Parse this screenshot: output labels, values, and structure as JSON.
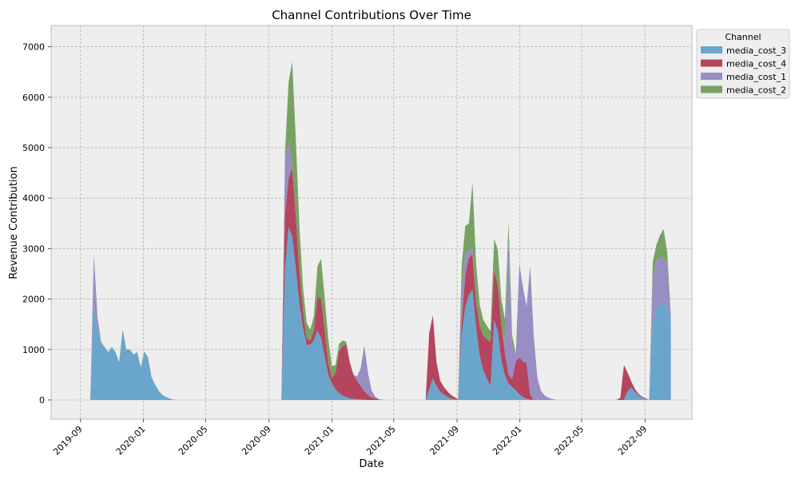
{
  "chart_data": {
    "type": "area",
    "stacked": true,
    "title": "Channel Contributions Over Time",
    "xlabel": "Date",
    "ylabel": "Revenue Contribution",
    "x_range": [
      "2019-07-06",
      "2022-12-01"
    ],
    "ylim": [
      -380,
      7420
    ],
    "y_ticks": [
      0,
      1000,
      2000,
      3000,
      4000,
      5000,
      6000,
      7000
    ],
    "x_ticks": [
      {
        "date": "2019-09-01",
        "label": "2019-09"
      },
      {
        "date": "2020-01-01",
        "label": "2020-01"
      },
      {
        "date": "2020-05-01",
        "label": "2020-05"
      },
      {
        "date": "2020-09-01",
        "label": "2020-09"
      },
      {
        "date": "2021-01-01",
        "label": "2021-01"
      },
      {
        "date": "2021-05-01",
        "label": "2021-05"
      },
      {
        "date": "2021-09-01",
        "label": "2021-09"
      },
      {
        "date": "2022-01-01",
        "label": "2022-01"
      },
      {
        "date": "2022-05-01",
        "label": "2022-05"
      },
      {
        "date": "2022-09-01",
        "label": "2022-09"
      }
    ],
    "grid": true,
    "legend": {
      "title": "Channel",
      "position": "outside-top-right"
    },
    "series": [
      {
        "name": "media_cost_3",
        "color": "#6aa6cc",
        "points": [
          [
            "2019-09-20",
            0
          ],
          [
            "2019-09-27",
            1900
          ],
          [
            "2019-10-04",
            1400
          ],
          [
            "2019-10-11",
            1100
          ],
          [
            "2019-10-18",
            1050
          ],
          [
            "2019-10-25",
            950
          ],
          [
            "2019-11-01",
            1050
          ],
          [
            "2019-11-08",
            950
          ],
          [
            "2019-11-15",
            750
          ],
          [
            "2019-11-22",
            1400
          ],
          [
            "2019-11-29",
            1000
          ],
          [
            "2019-12-06",
            1000
          ],
          [
            "2019-12-13",
            900
          ],
          [
            "2019-12-20",
            950
          ],
          [
            "2019-12-27",
            650
          ],
          [
            "2020-01-03",
            960
          ],
          [
            "2020-01-10",
            850
          ],
          [
            "2020-01-17",
            450
          ],
          [
            "2020-01-24",
            300
          ],
          [
            "2020-01-31",
            180
          ],
          [
            "2020-02-07",
            100
          ],
          [
            "2020-02-14",
            60
          ],
          [
            "2020-02-21",
            30
          ],
          [
            "2020-02-28",
            10
          ],
          [
            "2020-03-06",
            0
          ],
          [
            "2020-09-26",
            0
          ],
          [
            "2020-10-03",
            3000
          ],
          [
            "2020-10-10",
            3500
          ],
          [
            "2020-10-17",
            3200
          ],
          [
            "2020-10-24",
            2500
          ],
          [
            "2020-10-31",
            1800
          ],
          [
            "2020-11-07",
            1350
          ],
          [
            "2020-11-14",
            1050
          ],
          [
            "2020-11-21",
            1100
          ],
          [
            "2020-11-28",
            1200
          ],
          [
            "2020-12-05",
            1400
          ],
          [
            "2020-12-12",
            1200
          ],
          [
            "2020-12-19",
            800
          ],
          [
            "2020-12-26",
            450
          ],
          [
            "2021-01-02",
            300
          ],
          [
            "2021-01-09",
            200
          ],
          [
            "2021-01-16",
            130
          ],
          [
            "2021-01-23",
            80
          ],
          [
            "2021-01-30",
            50
          ],
          [
            "2021-02-06",
            30
          ],
          [
            "2021-02-13",
            20
          ],
          [
            "2021-02-20",
            15
          ],
          [
            "2021-02-27",
            10
          ],
          [
            "2021-03-06",
            5
          ],
          [
            "2021-03-13",
            0
          ],
          [
            "2021-07-03",
            0
          ],
          [
            "2021-07-10",
            250
          ],
          [
            "2021-07-17",
            450
          ],
          [
            "2021-07-24",
            250
          ],
          [
            "2021-07-31",
            150
          ],
          [
            "2021-08-07",
            100
          ],
          [
            "2021-08-14",
            60
          ],
          [
            "2021-08-21",
            30
          ],
          [
            "2021-08-28",
            10
          ],
          [
            "2021-09-04",
            0
          ],
          [
            "2021-09-11",
            1500
          ],
          [
            "2021-09-18",
            1900
          ],
          [
            "2021-09-25",
            2100
          ],
          [
            "2021-10-02",
            2200
          ],
          [
            "2021-10-09",
            1300
          ],
          [
            "2021-10-16",
            800
          ],
          [
            "2021-10-23",
            550
          ],
          [
            "2021-10-30",
            400
          ],
          [
            "2021-11-06",
            250
          ],
          [
            "2021-11-13",
            1800
          ],
          [
            "2021-11-20",
            1300
          ],
          [
            "2021-11-27",
            700
          ],
          [
            "2021-12-04",
            450
          ],
          [
            "2021-12-11",
            300
          ],
          [
            "2021-12-18",
            250
          ],
          [
            "2021-12-25",
            180
          ],
          [
            "2022-01-01",
            100
          ],
          [
            "2022-01-08",
            50
          ],
          [
            "2022-01-15",
            20
          ],
          [
            "2022-01-22",
            0
          ],
          [
            "2022-07-23",
            0
          ],
          [
            "2022-07-30",
            200
          ],
          [
            "2022-08-06",
            250
          ],
          [
            "2022-08-13",
            150
          ],
          [
            "2022-08-20",
            80
          ],
          [
            "2022-08-27",
            40
          ],
          [
            "2022-09-03",
            20
          ],
          [
            "2022-09-10",
            0
          ],
          [
            "2022-09-17",
            1800
          ],
          [
            "2022-09-24",
            1800
          ],
          [
            "2022-10-01",
            1900
          ],
          [
            "2022-10-08",
            1900
          ],
          [
            "2022-10-15",
            1850
          ],
          [
            "2022-10-22",
            1500
          ]
        ]
      },
      {
        "name": "media_cost_4",
        "color": "#b5455e",
        "points": [
          [
            "2020-09-26",
            0
          ],
          [
            "2020-10-03",
            1300
          ],
          [
            "2020-10-10",
            900
          ],
          [
            "2020-10-17",
            1450
          ],
          [
            "2020-10-24",
            1000
          ],
          [
            "2020-10-31",
            600
          ],
          [
            "2020-11-07",
            300
          ],
          [
            "2020-11-14",
            100
          ],
          [
            "2020-11-21",
            80
          ],
          [
            "2020-11-28",
            200
          ],
          [
            "2020-12-05",
            750
          ],
          [
            "2020-12-12",
            800
          ],
          [
            "2020-12-19",
            500
          ],
          [
            "2020-12-26",
            200
          ],
          [
            "2021-01-02",
            100
          ],
          [
            "2021-01-09",
            350
          ],
          [
            "2021-01-16",
            900
          ],
          [
            "2021-01-23",
            1000
          ],
          [
            "2021-01-30",
            1050
          ],
          [
            "2021-02-06",
            650
          ],
          [
            "2021-02-13",
            450
          ],
          [
            "2021-02-20",
            350
          ],
          [
            "2021-02-27",
            250
          ],
          [
            "2021-03-06",
            150
          ],
          [
            "2021-03-13",
            90
          ],
          [
            "2021-03-20",
            50
          ],
          [
            "2021-03-27",
            25
          ],
          [
            "2021-04-03",
            10
          ],
          [
            "2021-04-10",
            0
          ],
          [
            "2021-06-26",
            0
          ],
          [
            "2021-07-03",
            0
          ],
          [
            "2021-07-10",
            1300
          ],
          [
            "2021-07-17",
            1250
          ],
          [
            "2021-07-24",
            350
          ],
          [
            "2021-07-31",
            200
          ],
          [
            "2021-08-07",
            150
          ],
          [
            "2021-08-14",
            100
          ],
          [
            "2021-08-21",
            60
          ],
          [
            "2021-08-28",
            40
          ],
          [
            "2021-09-04",
            0
          ],
          [
            "2021-09-11",
            300
          ],
          [
            "2021-09-18",
            700
          ],
          [
            "2021-09-25",
            750
          ],
          [
            "2021-10-02",
            700
          ],
          [
            "2021-10-09",
            500
          ],
          [
            "2021-10-16",
            600
          ],
          [
            "2021-10-23",
            700
          ],
          [
            "2021-10-30",
            800
          ],
          [
            "2021-11-06",
            900
          ],
          [
            "2021-11-13",
            1000
          ],
          [
            "2021-11-20",
            900
          ],
          [
            "2021-11-27",
            700
          ],
          [
            "2021-12-04",
            400
          ],
          [
            "2021-12-11",
            150
          ],
          [
            "2021-12-18",
            150
          ],
          [
            "2021-12-25",
            650
          ],
          [
            "2022-01-01",
            750
          ],
          [
            "2022-01-08",
            700
          ],
          [
            "2022-01-15",
            700
          ],
          [
            "2022-01-22",
            0
          ],
          [
            "2022-07-09",
            0
          ],
          [
            "2022-07-16",
            50
          ],
          [
            "2022-07-23",
            800
          ],
          [
            "2022-07-30",
            300
          ],
          [
            "2022-08-06",
            100
          ],
          [
            "2022-08-13",
            50
          ],
          [
            "2022-08-20",
            30
          ],
          [
            "2022-08-27",
            20
          ],
          [
            "2022-09-03",
            10
          ],
          [
            "2022-09-10",
            0
          ]
        ]
      },
      {
        "name": "media_cost_1",
        "color": "#998ec3",
        "points": [
          [
            "2019-09-20",
            0
          ],
          [
            "2019-09-27",
            980
          ],
          [
            "2019-10-04",
            250
          ],
          [
            "2019-10-11",
            50
          ],
          [
            "2019-10-18",
            0
          ],
          [
            "2020-09-26",
            0
          ],
          [
            "2020-10-03",
            1300
          ],
          [
            "2020-10-10",
            600
          ],
          [
            "2020-10-17",
            0
          ],
          [
            "2021-01-30",
            0
          ],
          [
            "2021-02-06",
            0
          ],
          [
            "2021-02-13",
            0
          ],
          [
            "2021-02-20",
            100
          ],
          [
            "2021-02-27",
            400
          ],
          [
            "2021-03-06",
            1000
          ],
          [
            "2021-03-13",
            350
          ],
          [
            "2021-03-20",
            100
          ],
          [
            "2021-03-27",
            30
          ],
          [
            "2021-04-03",
            0
          ],
          [
            "2021-09-04",
            0
          ],
          [
            "2021-09-11",
            700
          ],
          [
            "2021-09-18",
            400
          ],
          [
            "2021-09-25",
            100
          ],
          [
            "2021-10-02",
            100
          ],
          [
            "2021-10-09",
            0
          ],
          [
            "2021-11-20",
            0
          ],
          [
            "2021-11-27",
            0
          ],
          [
            "2021-12-04",
            200
          ],
          [
            "2021-12-11",
            3000
          ],
          [
            "2021-12-18",
            300
          ],
          [
            "2021-12-25",
            100
          ],
          [
            "2022-01-01",
            2150
          ],
          [
            "2022-01-08",
            1350
          ],
          [
            "2022-01-15",
            1100
          ],
          [
            "2022-01-22",
            2800
          ],
          [
            "2022-01-29",
            1000
          ],
          [
            "2022-02-05",
            350
          ],
          [
            "2022-02-12",
            150
          ],
          [
            "2022-02-19",
            80
          ],
          [
            "2022-02-26",
            40
          ],
          [
            "2022-03-05",
            20
          ],
          [
            "2022-03-12",
            0
          ],
          [
            "2022-09-10",
            0
          ],
          [
            "2022-09-17",
            1000
          ],
          [
            "2022-09-24",
            950
          ],
          [
            "2022-10-01",
            950
          ],
          [
            "2022-10-08",
            900
          ],
          [
            "2022-10-15",
            800
          ],
          [
            "2022-10-22",
            0
          ]
        ]
      },
      {
        "name": "media_cost_2",
        "color": "#78a262",
        "points": [
          [
            "2020-09-26",
            0
          ],
          [
            "2020-10-03",
            100
          ],
          [
            "2020-10-10",
            1400
          ],
          [
            "2020-10-17",
            2100
          ],
          [
            "2020-10-24",
            1400
          ],
          [
            "2020-10-31",
            800
          ],
          [
            "2020-11-07",
            400
          ],
          [
            "2020-11-14",
            300
          ],
          [
            "2020-11-21",
            200
          ],
          [
            "2020-11-28",
            300
          ],
          [
            "2020-12-05",
            650
          ],
          [
            "2020-12-12",
            800
          ],
          [
            "2020-12-19",
            600
          ],
          [
            "2020-12-26",
            450
          ],
          [
            "2021-01-02",
            200
          ],
          [
            "2021-01-09",
            150
          ],
          [
            "2021-01-16",
            150
          ],
          [
            "2021-01-23",
            100
          ],
          [
            "2021-01-30",
            50
          ],
          [
            "2021-02-06",
            0
          ],
          [
            "2021-09-04",
            0
          ],
          [
            "2021-09-11",
            600
          ],
          [
            "2021-09-18",
            500
          ],
          [
            "2021-09-25",
            550
          ],
          [
            "2021-10-02",
            1450
          ],
          [
            "2021-10-09",
            600
          ],
          [
            "2021-10-16",
            400
          ],
          [
            "2021-10-23",
            300
          ],
          [
            "2021-10-30",
            250
          ],
          [
            "2021-11-06",
            200
          ],
          [
            "2021-11-13",
            700
          ],
          [
            "2021-11-20",
            700
          ],
          [
            "2021-11-27",
            450
          ],
          [
            "2021-12-04",
            500
          ],
          [
            "2021-12-11",
            400
          ],
          [
            "2021-12-18",
            150
          ],
          [
            "2021-12-25",
            0
          ],
          [
            "2022-09-10",
            0
          ],
          [
            "2022-09-17",
            400
          ],
          [
            "2022-09-24",
            300
          ],
          [
            "2022-10-01",
            450
          ],
          [
            "2022-10-08",
            600
          ],
          [
            "2022-10-15",
            200
          ],
          [
            "2022-10-22",
            0
          ]
        ]
      }
    ]
  }
}
